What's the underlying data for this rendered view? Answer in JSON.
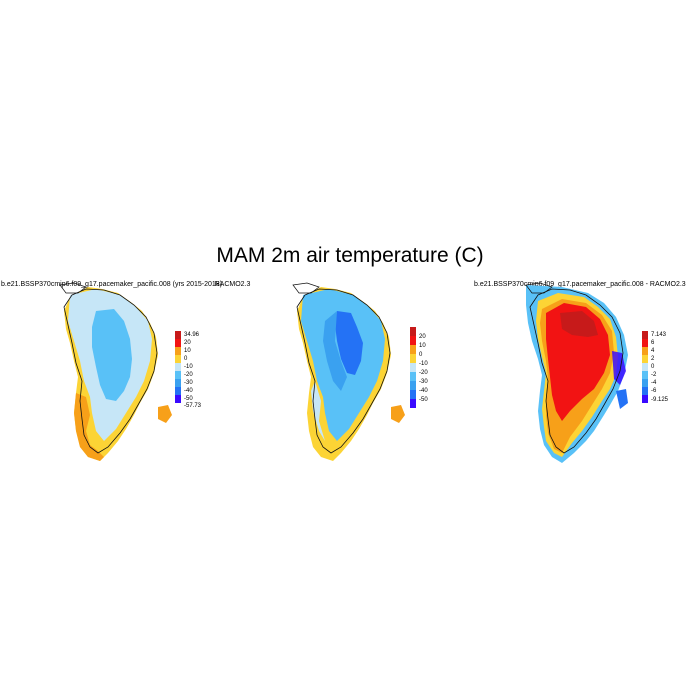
{
  "figure_title": "MAM 2m air temperature (C)",
  "panels": [
    {
      "title": "b.e21.BSSP370cmip6.f09_g17.pacemaker_pacific.008 (yrs 2015-2018)",
      "colorbar": {
        "colors": [
          "#3a0aff",
          "#2472f5",
          "#3aa1f0",
          "#59c1f7",
          "#c6e6f7",
          "#fcd435",
          "#f7a019",
          "#f21313",
          "#c71a1a"
        ],
        "labels": [
          "34.96",
          "20",
          "10",
          "0",
          "-10",
          "-20",
          "-30",
          "-40",
          "-50",
          "-57.73"
        ]
      }
    },
    {
      "title": "RACMO2.3",
      "colorbar": {
        "colors": [
          "#3a0aff",
          "#2472f5",
          "#3aa1f0",
          "#59c1f7",
          "#c6e6f7",
          "#fcd435",
          "#f7a019",
          "#f21313",
          "#c71a1a"
        ],
        "labels": [
          "20",
          "10",
          "0",
          "-10",
          "-20",
          "-30",
          "-40",
          "-50"
        ]
      }
    },
    {
      "title": "b.e21.BSSP370cmip6.f09_g17.pacemaker_pacific.008 - RACMO2.3",
      "colorbar": {
        "colors": [
          "#3a0aff",
          "#2472f5",
          "#3aa1f0",
          "#59c1f7",
          "#c6e6f7",
          "#fcd435",
          "#f7a019",
          "#f21313",
          "#c71a1a"
        ],
        "labels": [
          "7.143",
          "6",
          "4",
          "2",
          "0",
          "-2",
          "-4",
          "-6",
          "-9.125"
        ]
      }
    }
  ]
}
